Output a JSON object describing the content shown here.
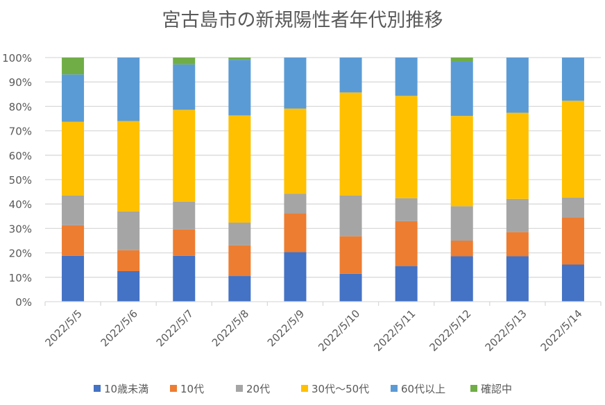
{
  "chart_data": {
    "type": "bar",
    "stacked": "percent",
    "title": "宮古島市の新規陽性者年代別推移",
    "xlabel": "",
    "ylabel": "",
    "ylim": [
      0,
      100
    ],
    "yticks": [
      "0%",
      "10%",
      "20%",
      "30%",
      "40%",
      "50%",
      "60%",
      "70%",
      "80%",
      "90%",
      "100%"
    ],
    "grid": true,
    "legend_position": "bottom",
    "categories": [
      "2022/5/5",
      "2022/5/6",
      "2022/5/7",
      "2022/5/8",
      "2022/5/9",
      "2022/5/10",
      "2022/5/11",
      "2022/5/12",
      "2022/5/13",
      "2022/5/14"
    ],
    "series": [
      {
        "name": "10歳未満",
        "color": "#4472C4",
        "values": [
          18.8,
          12.5,
          18.8,
          10.5,
          20.3,
          11.4,
          14.6,
          18.6,
          18.6,
          15.2
        ]
      },
      {
        "name": "10代",
        "color": "#ED7D31",
        "values": [
          12.5,
          8.6,
          10.8,
          12.6,
          15.9,
          15.4,
          18.4,
          6.4,
          9.9,
          19.3
        ]
      },
      {
        "name": "20代",
        "color": "#A5A5A5",
        "values": [
          12.2,
          15.9,
          11.4,
          9.3,
          8.0,
          16.7,
          9.4,
          14.1,
          13.6,
          8.2
        ]
      },
      {
        "name": "30代～50代",
        "color": "#FFC000",
        "values": [
          30.2,
          37.0,
          37.6,
          43.9,
          34.9,
          42.2,
          41.9,
          37.0,
          35.3,
          39.6
        ]
      },
      {
        "name": "60代以上",
        "color": "#5B9BD5",
        "values": [
          19.4,
          26.0,
          18.6,
          22.8,
          20.9,
          14.3,
          15.7,
          22.2,
          22.6,
          17.7
        ]
      },
      {
        "name": "確認中",
        "color": "#70AD47",
        "values": [
          6.9,
          0,
          2.8,
          0.9,
          0,
          0,
          0,
          1.7,
          0,
          0
        ]
      }
    ]
  }
}
